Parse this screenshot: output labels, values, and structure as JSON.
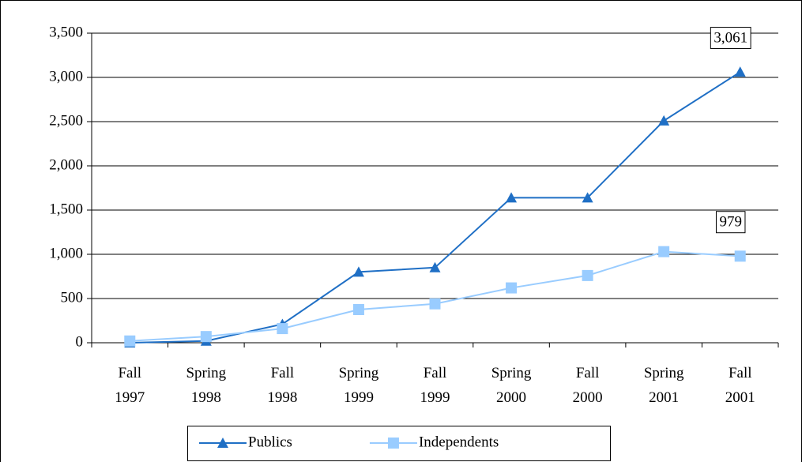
{
  "chart_data": {
    "type": "line",
    "categories": [
      "Fall 1997",
      "Spring 1998",
      "Fall 1998",
      "Spring 1999",
      "Fall 1999",
      "Spring 2000",
      "Fall 2000",
      "Spring 2001",
      "Fall 2001"
    ],
    "series": [
      {
        "name": "Publics",
        "color": "#1f6fc5",
        "marker": "triangle",
        "values": [
          0,
          20,
          210,
          800,
          850,
          1640,
          1640,
          2510,
          3061
        ],
        "value_labels": [
          null,
          null,
          null,
          null,
          null,
          null,
          null,
          null,
          "3,061"
        ]
      },
      {
        "name": "Independents",
        "color": "#99ccff",
        "marker": "square",
        "values": [
          20,
          70,
          160,
          375,
          440,
          620,
          760,
          1030,
          979
        ],
        "value_labels": [
          null,
          null,
          null,
          null,
          null,
          null,
          null,
          null,
          "979"
        ]
      }
    ],
    "ylim": [
      0,
      3500
    ],
    "yticks": [
      0,
      {
        "value": 500,
        "label": "500"
      },
      {
        "value": 1000,
        "label": "1,000"
      },
      {
        "value": 1500,
        "label": "1,500"
      },
      {
        "value": 2000,
        "label": "2,000"
      },
      {
        "value": 2500,
        "label": "2,500"
      },
      {
        "value": 3000,
        "label": "3,000"
      },
      {
        "value": 3500,
        "label": "3,500"
      }
    ],
    "grid": true,
    "legend": "bottom"
  }
}
